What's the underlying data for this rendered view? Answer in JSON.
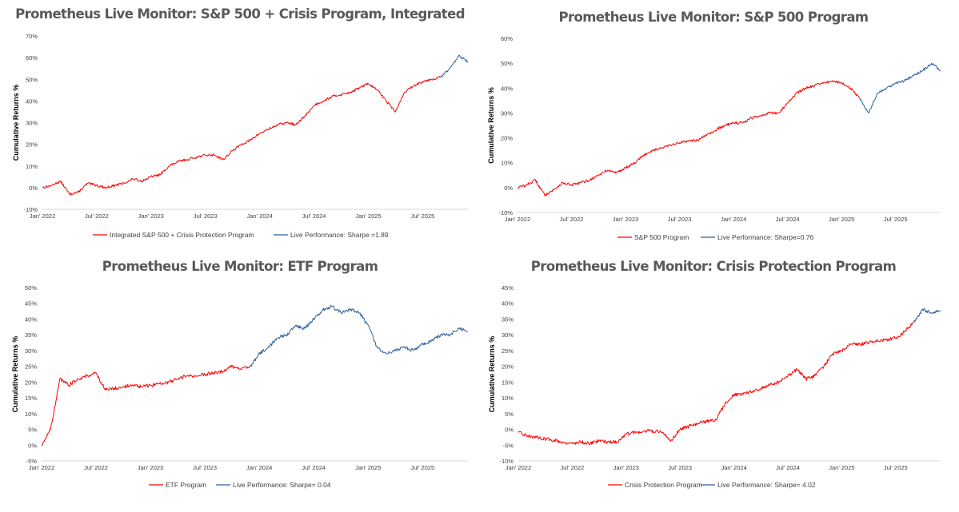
{
  "colors": {
    "backtest": "#ff0000",
    "live": "#2e5f9e",
    "axis": "#d9d9d9",
    "text": "#404040",
    "title": "#595959"
  },
  "chart_data": [
    {
      "type": "line",
      "title": "Prometheus Live Monitor: S&P 500 + Crisis Program, Integrated",
      "ylabel": "Cumulative  Returns %",
      "xlabel": "",
      "x_ticks": [
        "Jan' 2022",
        "Jul' 2022",
        "Jan' 2023",
        "Jul' 2023",
        "Jan' 2024",
        "Jul' 2024",
        "Jan' 2025",
        "Jul' 2025"
      ],
      "y_ticks": [
        "-10%",
        "0%",
        "10%",
        "20%",
        "30%",
        "40%",
        "50%",
        "60%",
        "70%"
      ],
      "ylim": [
        -10,
        70
      ],
      "x_range": [
        "2022-01",
        "2025-12"
      ],
      "grid": false,
      "legend_position": "bottom",
      "series": [
        {
          "name": "Integrated S&P 500 + Crisis Protection Program",
          "color": "#ff0000",
          "x": [
            "2022-01",
            "2022-02",
            "2022-03",
            "2022-04",
            "2022-05",
            "2022-06",
            "2022-07",
            "2022-08",
            "2022-09",
            "2022-10",
            "2022-11",
            "2022-12",
            "2023-01",
            "2023-02",
            "2023-03",
            "2023-04",
            "2023-05",
            "2023-06",
            "2023-07",
            "2023-08",
            "2023-09",
            "2023-10",
            "2023-11",
            "2023-12",
            "2024-01",
            "2024-02",
            "2024-03",
            "2024-04",
            "2024-05",
            "2024-06",
            "2024-07",
            "2024-08",
            "2024-09",
            "2024-10",
            "2024-11",
            "2024-12",
            "2025-01",
            "2025-02",
            "2025-03",
            "2025-04",
            "2025-05",
            "2025-06",
            "2025-07",
            "2025-08",
            "2025-09"
          ],
          "y": [
            0,
            1,
            3,
            -3,
            -2,
            2,
            1,
            0,
            1,
            2,
            4,
            3,
            5,
            6,
            10,
            12,
            13,
            14,
            15,
            15,
            13,
            17,
            20,
            22,
            25,
            27,
            29,
            30,
            29,
            33,
            38,
            40,
            42,
            43,
            44,
            46,
            48,
            45,
            40,
            35,
            44,
            47,
            49,
            50,
            51
          ]
        },
        {
          "name": "Live Performance: Sharpe =1.89",
          "color": "#2e5f9e",
          "x": [
            "2025-09",
            "2025-10",
            "2025-11",
            "2025-12"
          ],
          "y": [
            51,
            55,
            61,
            58
          ]
        }
      ]
    },
    {
      "type": "line",
      "title": "Prometheus Live Monitor: S&P 500 Program",
      "ylabel": "Cumulative Returns %",
      "xlabel": "",
      "x_ticks": [
        "Jan' 2022",
        "Jul' 2022",
        "Jan' 2023",
        "Jul' 2023",
        "Jan' 2024",
        "Jul' 2024",
        "Jan' 2025",
        "Jul' 2025"
      ],
      "y_ticks": [
        "-10%",
        "0%",
        "10%",
        "20%",
        "30%",
        "40%",
        "50%",
        "60%"
      ],
      "ylim": [
        -10,
        60
      ],
      "x_range": [
        "2022-01",
        "2025-12"
      ],
      "grid": false,
      "legend_position": "bottom",
      "series": [
        {
          "name": "S&P 500 Program",
          "color": "#ff0000",
          "x": [
            "2022-01",
            "2022-02",
            "2022-03",
            "2022-04",
            "2022-05",
            "2022-06",
            "2022-07",
            "2022-08",
            "2022-09",
            "2022-10",
            "2022-11",
            "2022-12",
            "2023-01",
            "2023-02",
            "2023-03",
            "2023-04",
            "2023-05",
            "2023-06",
            "2023-07",
            "2023-08",
            "2023-09",
            "2023-10",
            "2023-11",
            "2023-12",
            "2024-01",
            "2024-02",
            "2024-03",
            "2024-04",
            "2024-05",
            "2024-06",
            "2024-07",
            "2024-08",
            "2024-09",
            "2024-10",
            "2024-11",
            "2024-12",
            "2025-01",
            "2025-02",
            "2025-03"
          ],
          "y": [
            0,
            1,
            3,
            -3,
            -1,
            2,
            1,
            2,
            3,
            5,
            7,
            6,
            8,
            10,
            13,
            15,
            16,
            17,
            18,
            19,
            19,
            21,
            23,
            25,
            26,
            26,
            28,
            29,
            30,
            30,
            34,
            38,
            40,
            41,
            42,
            43,
            42,
            40,
            36
          ]
        },
        {
          "name": "Live Performance: Sharpe=0.76",
          "color": "#2e5f9e",
          "x": [
            "2025-03",
            "2025-04",
            "2025-05",
            "2025-06",
            "2025-07",
            "2025-08",
            "2025-09",
            "2025-10",
            "2025-11",
            "2025-12"
          ],
          "y": [
            36,
            30,
            38,
            40,
            42,
            43,
            45,
            47,
            50,
            47
          ]
        }
      ]
    },
    {
      "type": "line",
      "title": "Prometheus Live Monitor: ETF Program",
      "ylabel": "Cumulative Returns %",
      "xlabel": "",
      "x_ticks": [
        "Jan' 2022",
        "Jul' 2022",
        "Jan' 2023",
        "Jul' 2023",
        "Jan' 2024",
        "Jul' 2024",
        "Jan' 2025",
        "Jul' 2025"
      ],
      "y_ticks": [
        "-5%",
        "0%",
        "5%",
        "10%",
        "15%",
        "20%",
        "25%",
        "30%",
        "35%",
        "40%",
        "45%",
        "50%"
      ],
      "ylim": [
        -5,
        50
      ],
      "x_range": [
        "2022-01",
        "2025-12"
      ],
      "grid": false,
      "legend_position": "bottom",
      "series": [
        {
          "name": "ETF Program",
          "color": "#ff0000",
          "x": [
            "2022-01",
            "2022-02",
            "2022-03",
            "2022-04",
            "2022-05",
            "2022-06",
            "2022-07",
            "2022-08",
            "2022-09",
            "2022-10",
            "2022-11",
            "2022-12",
            "2023-01",
            "2023-02",
            "2023-03",
            "2023-04",
            "2023-05",
            "2023-06",
            "2023-07",
            "2023-08",
            "2023-09",
            "2023-10",
            "2023-11",
            "2023-12"
          ],
          "y": [
            0,
            5,
            21,
            19,
            21,
            22,
            23,
            17.5,
            18,
            18.5,
            19,
            18.5,
            19,
            19.5,
            20,
            21,
            22,
            22,
            22.5,
            23,
            23.5,
            25,
            24,
            25
          ]
        },
        {
          "name": "Live Performance: Sharpe= 0.04",
          "color": "#2e5f9e",
          "x": [
            "2023-12",
            "2024-01",
            "2024-02",
            "2024-03",
            "2024-04",
            "2024-05",
            "2024-06",
            "2024-07",
            "2024-08",
            "2024-09",
            "2024-10",
            "2024-11",
            "2024-12",
            "2025-01",
            "2025-02",
            "2025-03",
            "2025-04",
            "2025-05",
            "2025-06",
            "2025-07",
            "2025-08",
            "2025-09",
            "2025-10",
            "2025-11",
            "2025-12"
          ],
          "y": [
            25,
            29,
            31,
            34,
            35,
            38,
            37,
            40,
            43,
            44,
            42,
            43,
            42,
            38,
            31,
            29,
            30,
            31,
            30,
            32,
            33,
            35,
            35,
            37,
            36
          ]
        }
      ]
    },
    {
      "type": "line",
      "title": "Prometheus Live Monitor: Crisis Protection Program",
      "ylabel": "Cumulative Returns %",
      "xlabel": "",
      "x_ticks": [
        "Jan' 2022",
        "Jul' 2022",
        "Jan' 2023",
        "Jul' 2023",
        "Jan' 2024",
        "Jul' 2024",
        "Jan' 2025",
        "Jul' 2025"
      ],
      "y_ticks": [
        "-10%",
        "-5%",
        "0%",
        "5%",
        "10%",
        "15%",
        "20%",
        "25%",
        "30%",
        "35%",
        "40%",
        "45%"
      ],
      "ylim": [
        -10,
        45
      ],
      "x_range": [
        "2022-01",
        "2025-12"
      ],
      "grid": false,
      "legend_position": "bottom",
      "series": [
        {
          "name": "Crisis Protection Program",
          "color": "#ff0000",
          "x": [
            "2022-01",
            "2022-02",
            "2022-03",
            "2022-04",
            "2022-05",
            "2022-06",
            "2022-07",
            "2022-08",
            "2022-09",
            "2022-10",
            "2022-11",
            "2022-12",
            "2023-01",
            "2023-02",
            "2023-03",
            "2023-04",
            "2023-05",
            "2023-06",
            "2023-07",
            "2023-08",
            "2023-09",
            "2023-10",
            "2023-11",
            "2023-12",
            "2024-01",
            "2024-02",
            "2024-03",
            "2024-04",
            "2024-05",
            "2024-06",
            "2024-07",
            "2024-08",
            "2024-09",
            "2024-10",
            "2024-11",
            "2024-12",
            "2025-01",
            "2025-02",
            "2025-03",
            "2025-04",
            "2025-05",
            "2025-06",
            "2025-07",
            "2025-08",
            "2025-09"
          ],
          "y": [
            -1,
            -2,
            -2.5,
            -3,
            -3.5,
            -4,
            -4.5,
            -4,
            -4.5,
            -3.5,
            -4,
            -4,
            -1.5,
            -1,
            -0.5,
            -0.5,
            -1,
            -3.5,
            0,
            1,
            2,
            2.5,
            3,
            8,
            11,
            11,
            12,
            13,
            14,
            15,
            17,
            19,
            16,
            17,
            20,
            24,
            25,
            27,
            27,
            27.5,
            28,
            28.5,
            29,
            31,
            34
          ]
        },
        {
          "name": "Live Performance: Sharpe= 4.02",
          "color": "#2e5f9e",
          "x": [
            "2025-09",
            "2025-10",
            "2025-11",
            "2025-12"
          ],
          "y": [
            34,
            38,
            37,
            37.5
          ]
        }
      ]
    }
  ]
}
